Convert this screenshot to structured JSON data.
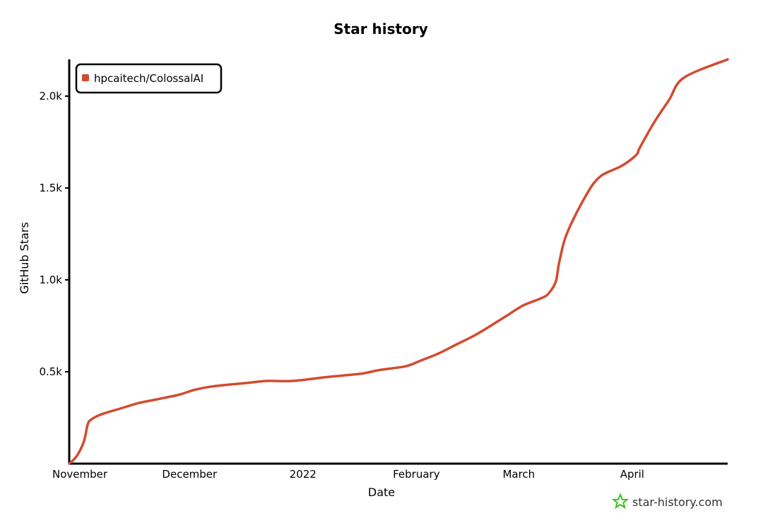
{
  "chart_data": {
    "type": "line",
    "title": "Star history",
    "xlabel": "Date",
    "ylabel": "GitHub Stars",
    "x_tick_labels": [
      "November",
      "December",
      "2022",
      "February",
      "March",
      "April"
    ],
    "y_tick_labels": [
      "0.5k",
      "1.0k",
      "1.5k",
      "2.0k"
    ],
    "y_ticks": [
      500,
      1000,
      1500,
      2000
    ],
    "ylim": [
      0,
      2200
    ],
    "xlim": [
      "2021-11-01",
      "2022-04-30"
    ],
    "grid": false,
    "legend_position": "top-left",
    "series": [
      {
        "name": "hpcaitech/ColossalAI",
        "color": "#d34b2f",
        "x": [
          "2021-11-01",
          "2021-11-03",
          "2021-11-05",
          "2021-11-06",
          "2021-11-07",
          "2021-11-10",
          "2021-11-15",
          "2021-11-20",
          "2021-11-25",
          "2021-12-01",
          "2021-12-05",
          "2021-12-10",
          "2021-12-20",
          "2021-12-25",
          "2022-01-01",
          "2022-01-10",
          "2022-01-15",
          "2022-01-20",
          "2022-01-25",
          "2022-02-01",
          "2022-02-05",
          "2022-02-10",
          "2022-02-15",
          "2022-02-20",
          "2022-02-25",
          "2022-03-01",
          "2022-03-05",
          "2022-03-10",
          "2022-03-12",
          "2022-03-14",
          "2022-03-15",
          "2022-03-17",
          "2022-03-22",
          "2022-03-26",
          "2022-04-01",
          "2022-04-05",
          "2022-04-06",
          "2022-04-10",
          "2022-04-14",
          "2022-04-18",
          "2022-04-30"
        ],
        "y": [
          0,
          40,
          120,
          210,
          240,
          270,
          300,
          330,
          350,
          375,
          400,
          420,
          440,
          450,
          450,
          470,
          480,
          490,
          510,
          530,
          560,
          600,
          650,
          700,
          760,
          810,
          860,
          900,
          925,
          990,
          1100,
          1250,
          1450,
          1560,
          1620,
          1680,
          1720,
          1860,
          1980,
          2100,
          2200
        ]
      }
    ]
  },
  "watermark": {
    "text": "star-history.com",
    "icon": "star-icon",
    "color": "#3ac41e"
  }
}
